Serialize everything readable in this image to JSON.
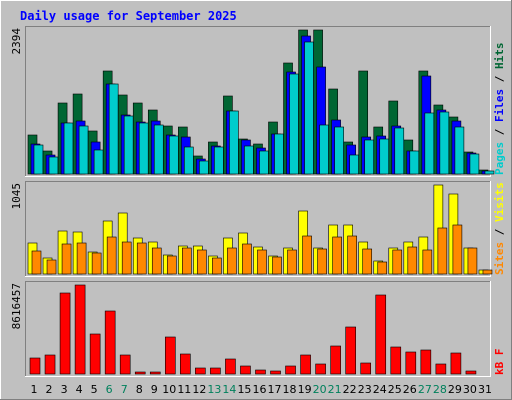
{
  "title": "Daily usage for September 2025",
  "colors": {
    "background": "#c0c0c0",
    "panel": "#c0c0c0",
    "title": "#0000ff",
    "hits": "#006633",
    "files": "#0000ff",
    "pages": "#00cccc",
    "visits": "#ffff00",
    "sites": "#ff8800",
    "kbytes": "#ff0000",
    "weekend": "#00805c"
  },
  "chart_data": [
    {
      "type": "bar",
      "title": "Daily usage for September 2025",
      "categories": [
        "1",
        "2",
        "3",
        "4",
        "5",
        "6",
        "7",
        "8",
        "9",
        "10",
        "11",
        "12",
        "13",
        "14",
        "15",
        "16",
        "17",
        "18",
        "19",
        "20",
        "21",
        "22",
        "23",
        "24",
        "25",
        "26",
        "27",
        "28",
        "29",
        "30",
        "31"
      ],
      "weekend_days": [
        "6",
        "7",
        "13",
        "14",
        "20",
        "21",
        "27",
        "28"
      ],
      "ymax_label": "2394",
      "ylim": [
        0,
        2394
      ],
      "legend": [
        "Pages",
        "Files",
        "Hits"
      ],
      "legend_placement": "right",
      "series": [
        {
          "name": "Hits",
          "values": [
            650,
            380,
            1180,
            1330,
            710,
            1720,
            1310,
            1180,
            1060,
            800,
            780,
            300,
            540,
            1290,
            590,
            500,
            860,
            1850,
            2400,
            2400,
            1420,
            540,
            1720,
            780,
            1220,
            560,
            1720,
            1150,
            940,
            360,
            60
          ]
        },
        {
          "name": "Files",
          "values": [
            500,
            320,
            850,
            880,
            540,
            1500,
            980,
            860,
            880,
            650,
            620,
            250,
            470,
            1050,
            560,
            430,
            670,
            1700,
            2300,
            1780,
            900,
            490,
            620,
            640,
            790,
            390,
            1630,
            1070,
            880,
            350,
            55
          ]
        },
        {
          "name": "Pages",
          "values": [
            490,
            280,
            840,
            800,
            400,
            1500,
            970,
            850,
            820,
            640,
            450,
            210,
            450,
            1040,
            460,
            390,
            660,
            1660,
            2200,
            820,
            780,
            310,
            560,
            580,
            760,
            380,
            1020,
            1030,
            780,
            340,
            50
          ]
        }
      ]
    },
    {
      "type": "bar",
      "categories": [
        "1",
        "2",
        "3",
        "4",
        "5",
        "6",
        "7",
        "8",
        "9",
        "10",
        "11",
        "12",
        "13",
        "14",
        "15",
        "16",
        "17",
        "18",
        "19",
        "20",
        "21",
        "22",
        "23",
        "24",
        "25",
        "26",
        "27",
        "28",
        "29",
        "30",
        "31"
      ],
      "ymax_label": "1045",
      "ylim": [
        0,
        1045
      ],
      "legend": [
        "Sites",
        "Visits"
      ],
      "legend_placement": "right",
      "series": [
        {
          "name": "Visits",
          "values": [
            360,
            190,
            500,
            490,
            260,
            620,
            720,
            420,
            380,
            220,
            330,
            330,
            210,
            420,
            480,
            320,
            210,
            310,
            740,
            310,
            580,
            580,
            370,
            150,
            300,
            380,
            440,
            1045,
            940,
            310,
            50
          ]
        },
        {
          "name": "Sites",
          "values": [
            270,
            170,
            350,
            360,
            250,
            430,
            380,
            360,
            300,
            210,
            300,
            280,
            190,
            310,
            350,
            280,
            200,
            280,
            450,
            290,
            430,
            450,
            290,
            140,
            280,
            320,
            280,
            540,
            580,
            300,
            50
          ]
        }
      ]
    },
    {
      "type": "bar",
      "categories": [
        "1",
        "2",
        "3",
        "4",
        "5",
        "6",
        "7",
        "8",
        "9",
        "10",
        "11",
        "12",
        "13",
        "14",
        "15",
        "16",
        "17",
        "18",
        "19",
        "20",
        "21",
        "22",
        "23",
        "24",
        "25",
        "26",
        "27",
        "28",
        "29",
        "30",
        "31"
      ],
      "ymax_label": "8616457",
      "ylim": [
        0,
        8616457
      ],
      "legend": [
        "kB F"
      ],
      "legend_placement": "right",
      "series": [
        {
          "name": "kB F",
          "values": [
            1520000,
            1880000,
            7880000,
            8616457,
            3900000,
            6070000,
            1810000,
            80000,
            80000,
            3600000,
            1940000,
            560000,
            560000,
            1430000,
            800000,
            400000,
            320000,
            740000,
            1810000,
            1010000,
            2740000,
            4550000,
            1050000,
            7640000,
            2590000,
            2090000,
            2320000,
            1010000,
            2000000,
            310000,
            0
          ]
        }
      ]
    }
  ]
}
